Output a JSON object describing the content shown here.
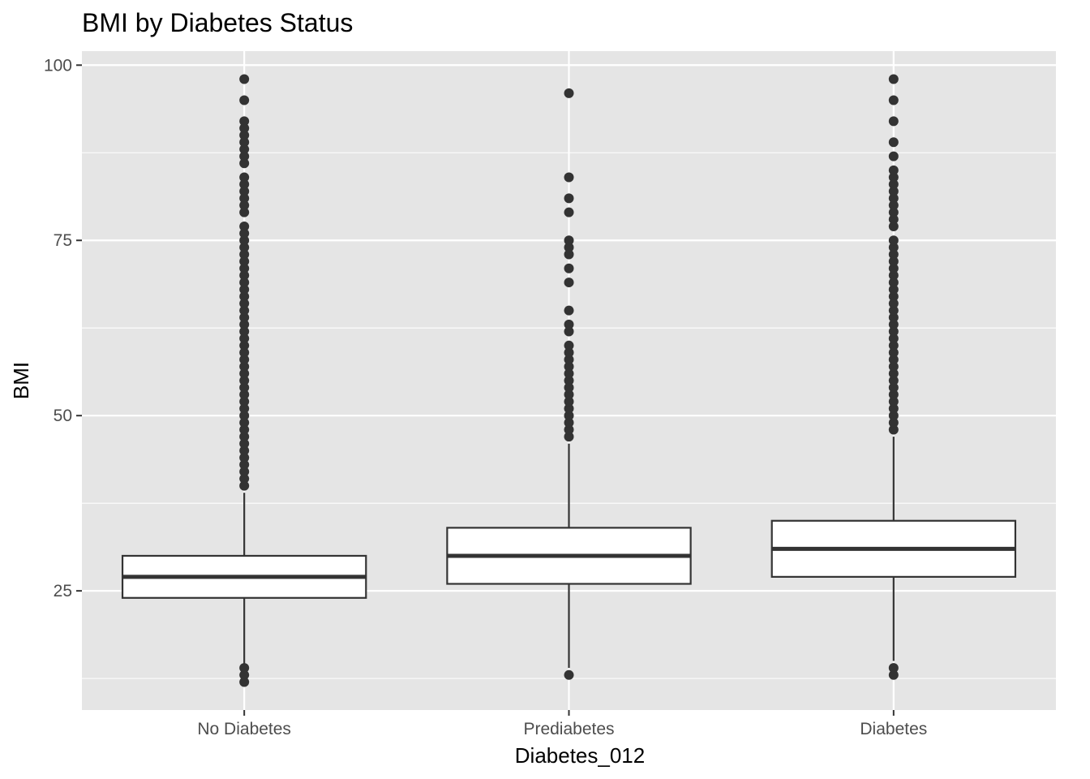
{
  "chart_data": {
    "type": "boxplot",
    "title": "BMI by Diabetes Status",
    "xlabel": "Diabetes_012",
    "ylabel": "BMI",
    "ylim": [
      8,
      102
    ],
    "yticks": [
      25,
      50,
      75,
      100
    ],
    "yticks_minor": [
      12.5,
      37.5,
      62.5,
      87.5
    ],
    "grid": true,
    "categories": [
      "No Diabetes",
      "Prediabetes",
      "Diabetes"
    ],
    "boxes": [
      {
        "name": "No Diabetes",
        "q1": 24,
        "median": 27,
        "q3": 30,
        "whisker_low": 14,
        "whisker_high": 39,
        "outliers": [
          12,
          13,
          14,
          40,
          41,
          42,
          43,
          44,
          45,
          46,
          47,
          48,
          49,
          50,
          51,
          52,
          53,
          54,
          55,
          56,
          57,
          58,
          59,
          60,
          61,
          62,
          63,
          64,
          65,
          66,
          67,
          68,
          69,
          70,
          71,
          72,
          73,
          74,
          75,
          76,
          77,
          79,
          80,
          81,
          82,
          83,
          84,
          86,
          87,
          88,
          89,
          90,
          91,
          92,
          95,
          98
        ]
      },
      {
        "name": "Prediabetes",
        "q1": 26,
        "median": 30,
        "q3": 34,
        "whisker_low": 14,
        "whisker_high": 46,
        "outliers": [
          13,
          47,
          48,
          49,
          50,
          51,
          52,
          53,
          54,
          55,
          56,
          57,
          58,
          59,
          60,
          62,
          63,
          65,
          69,
          71,
          73,
          74,
          75,
          79,
          81,
          84,
          96
        ]
      },
      {
        "name": "Diabetes",
        "q1": 27,
        "median": 31,
        "q3": 35,
        "whisker_low": 15,
        "whisker_high": 47,
        "outliers": [
          13,
          14,
          48,
          49,
          50,
          51,
          52,
          53,
          54,
          55,
          56,
          57,
          58,
          59,
          60,
          61,
          62,
          63,
          64,
          65,
          66,
          67,
          68,
          69,
          70,
          71,
          72,
          73,
          74,
          75,
          77,
          78,
          79,
          80,
          81,
          82,
          83,
          84,
          85,
          87,
          89,
          92,
          95,
          98
        ]
      }
    ]
  }
}
